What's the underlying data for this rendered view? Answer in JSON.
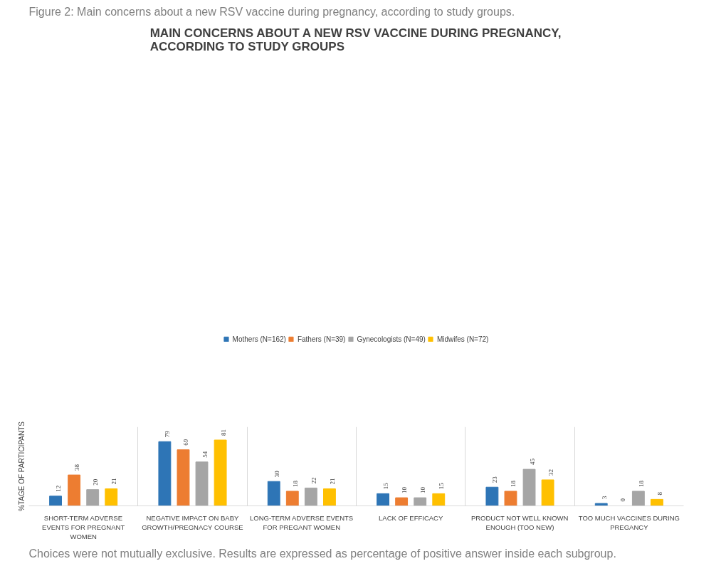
{
  "chart_data": {
    "type": "bar",
    "title": "MAIN CONCERNS ABOUT A NEW RSV VACCINE DURING PREGNANCY, ACCORDING TO STUDY GROUPS",
    "ylabel": "%TAGE OF PARTICIPANTS",
    "annotations": [
      "Figure 2: Main concerns about a new RSV vaccine during pregnancy, according to study groups.",
      "Choices were not mutually exclusive. Results are expressed as percentage of positive answer inside each subgroup."
    ],
    "categories": [
      "SHORT-TERM ADVERSE EVENTS FOR PREGNANT WOMEN",
      "NEGATIVE IMPACT ON BABY GROWTH/PREGNACY COURSE",
      "LONG-TERM ADVERSE EVENTS FOR PREGANT WOMEN",
      "LACK OF EFFICACY",
      "PRODUCT NOT WELL KNOWN ENOUGH (TOO NEW)",
      "TOO MUCH VACCINES DURING PREGANCY"
    ],
    "series": [
      {
        "name": "Mothers (N=162)",
        "color": "#2e75b6",
        "values": [
          12,
          79,
          30,
          15,
          23,
          3
        ]
      },
      {
        "name": "Fathers (N=39)",
        "color": "#ed7d31",
        "values": [
          38,
          69,
          18,
          10,
          18,
          0
        ]
      },
      {
        "name": "Gynecologists (N=49)",
        "color": "#a5a5a5",
        "values": [
          20,
          54,
          22,
          10,
          45,
          18
        ]
      },
      {
        "name": "Midwifes (N=72)",
        "color": "#ffc000",
        "values": [
          21,
          81,
          21,
          15,
          32,
          8
        ]
      }
    ],
    "data_labels": true,
    "grid": "x",
    "legend": "top",
    "tick_labels": "x"
  }
}
